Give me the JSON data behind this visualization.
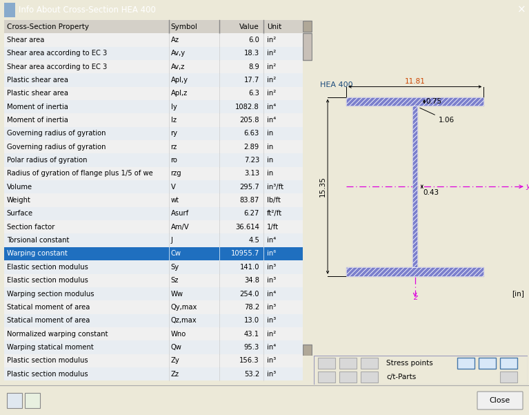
{
  "title": "Info About Cross-Section HEA 400",
  "table_rows": [
    [
      "Shear area",
      "Az",
      "6.0",
      "in²"
    ],
    [
      "Shear area according to EC 3",
      "Av,y",
      "18.3",
      "in²"
    ],
    [
      "Shear area according to EC 3",
      "Av,z",
      "8.9",
      "in²"
    ],
    [
      "Plastic shear area",
      "Apl,y",
      "17.7",
      "in²"
    ],
    [
      "Plastic shear area",
      "Apl,z",
      "6.3",
      "in²"
    ],
    [
      "Moment of inertia",
      "Iy",
      "1082.8",
      "in⁴"
    ],
    [
      "Moment of inertia",
      "Iz",
      "205.8",
      "in⁴"
    ],
    [
      "Governing radius of gyration",
      "ry",
      "6.63",
      "in"
    ],
    [
      "Governing radius of gyration",
      "rz",
      "2.89",
      "in"
    ],
    [
      "Polar radius of gyration",
      "ro",
      "7.23",
      "in"
    ],
    [
      "Radius of gyration of flange plus 1/5 of we",
      "rzg",
      "3.13",
      "in"
    ],
    [
      "Volume",
      "V",
      "295.7",
      "in³/ft"
    ],
    [
      "Weight",
      "wt",
      "83.87",
      "lb/ft"
    ],
    [
      "Surface",
      "Asurf",
      "6.27",
      "ft²/ft"
    ],
    [
      "Section factor",
      "Am/V",
      "36.614",
      "1/ft"
    ],
    [
      "Torsional constant",
      "J",
      "4.5",
      "in⁴"
    ],
    [
      "Warping constant",
      "Cw",
      "10955.7",
      "in⁶"
    ],
    [
      "Elastic section modulus",
      "Sy",
      "141.0",
      "in³"
    ],
    [
      "Elastic section modulus",
      "Sz",
      "34.8",
      "in³"
    ],
    [
      "Warping section modulus",
      "Ww",
      "254.0",
      "in⁴"
    ],
    [
      "Statical moment of area",
      "Qy,max",
      "78.2",
      "in³"
    ],
    [
      "Statical moment of area",
      "Qz,max",
      "13.0",
      "in³"
    ],
    [
      "Normalized warping constant",
      "Wno",
      "43.1",
      "in²"
    ],
    [
      "Warping statical moment",
      "Qw",
      "95.3",
      "in⁴"
    ],
    [
      "Plastic section modulus",
      "Zy",
      "156.3",
      "in³"
    ],
    [
      "Plastic section modulus",
      "Zz",
      "53.2",
      "in³"
    ]
  ],
  "highlighted_row": 16,
  "col_headers": [
    "Cross-Section Property",
    "Symbol",
    "Value",
    "Unit"
  ],
  "section_label": "HEA 400",
  "dim_width": "11.81",
  "dim_height": "15.35",
  "dim_flange_t": "0.75",
  "dim_web_t": "1.06",
  "dim_web_w": "0.43",
  "unit_label": "[in]",
  "bg_color_right": "#fdfbf3",
  "highlight_color": "#1f6fbf",
  "cross_fill_color": "#7b7fcc",
  "axis_color": "#dd00dd",
  "title_bar_color": "#3399ff",
  "window_bg": "#ece9d8"
}
